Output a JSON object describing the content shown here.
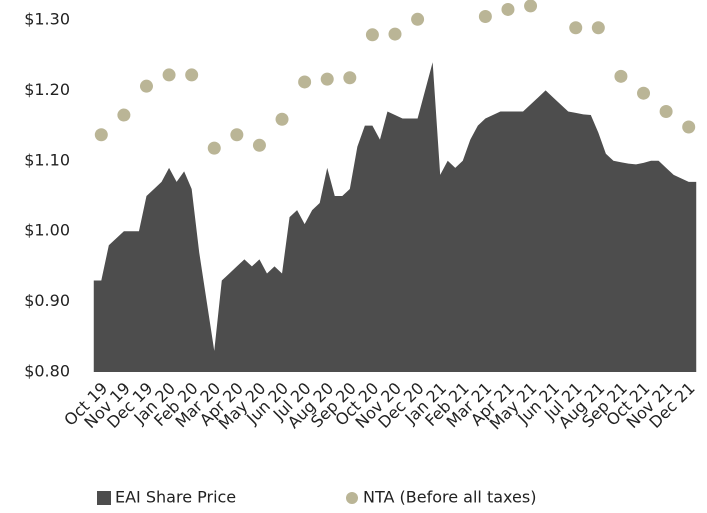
{
  "chart_data": {
    "type": "area_scatter",
    "categories": [
      null,
      "Oct 19",
      null,
      null,
      "Nov 19",
      null,
      null,
      "Dec 19",
      null,
      null,
      "Jan 20",
      null,
      null,
      "Feb 20",
      null,
      null,
      "Mar 20",
      null,
      null,
      "Apr 20",
      null,
      null,
      "May 20",
      null,
      null,
      "Jun 20",
      null,
      null,
      "Jul 20",
      null,
      null,
      "Aug 20",
      null,
      null,
      "Sep 20",
      null,
      null,
      "Oct 20",
      null,
      null,
      "Nov 20",
      null,
      null,
      "Dec 20",
      null,
      null,
      "Jan 21",
      null,
      null,
      "Feb 21",
      null,
      null,
      "Mar 21",
      null,
      null,
      "Apr 21",
      null,
      null,
      "May 21",
      null,
      null,
      "Jun 21",
      null,
      null,
      "Jul 21",
      null,
      null,
      "Aug 21",
      null,
      null,
      "Sep 21",
      null,
      null,
      "Oct 21",
      null,
      null,
      "Nov 21",
      null,
      null,
      "Dec 21",
      null
    ],
    "series": [
      {
        "name": "EAI Share Price",
        "color": "#4d4d4d",
        "kind": "area",
        "values": [
          0.93,
          0.93,
          0.98,
          0.99,
          1.0,
          1.0,
          1.0,
          1.05,
          1.06,
          1.07,
          1.09,
          1.07,
          1.085,
          1.06,
          0.97,
          0.9,
          0.83,
          0.93,
          0.94,
          0.95,
          0.96,
          0.95,
          0.96,
          0.94,
          0.95,
          0.94,
          1.02,
          1.03,
          1.01,
          1.03,
          1.04,
          1.09,
          1.05,
          1.05,
          1.06,
          1.12,
          1.15,
          1.15,
          1.13,
          1.17,
          1.165,
          1.16,
          1.16,
          1.16,
          1.2,
          1.24,
          1.08,
          1.1,
          1.09,
          1.1,
          1.13,
          1.15,
          1.16,
          1.165,
          1.17,
          1.17,
          1.17,
          1.17,
          1.18,
          1.19,
          1.2,
          1.19,
          1.18,
          1.17,
          1.168,
          1.166,
          1.165,
          1.14,
          1.11,
          1.1,
          1.098,
          1.096,
          1.095,
          1.097,
          1.1,
          1.1,
          1.09,
          1.08,
          1.075,
          1.07,
          1.07
        ]
      },
      {
        "name": "NTA (Before all taxes)",
        "color": "#bab596",
        "kind": "dots",
        "values": [
          null,
          1.137,
          null,
          null,
          1.165,
          null,
          null,
          1.206,
          null,
          null,
          1.222,
          null,
          null,
          1.222,
          null,
          null,
          1.118,
          null,
          null,
          1.137,
          null,
          null,
          1.122,
          null,
          null,
          1.159,
          null,
          null,
          1.212,
          null,
          null,
          1.216,
          null,
          null,
          1.218,
          null,
          null,
          1.279,
          null,
          null,
          1.28,
          null,
          null,
          1.301,
          null,
          null,
          null,
          null,
          null,
          null,
          null,
          null,
          1.305,
          null,
          null,
          1.315,
          null,
          null,
          1.32,
          null,
          null,
          null,
          null,
          null,
          1.289,
          null,
          null,
          1.289,
          null,
          null,
          1.22,
          null,
          null,
          1.196,
          null,
          null,
          1.17,
          null,
          null,
          1.148,
          null
        ]
      }
    ],
    "ylim": [
      0.8,
      1.3
    ],
    "yticks": [
      {
        "value": 0.8,
        "label": "$0.80"
      },
      {
        "value": 0.9,
        "label": "$0.90"
      },
      {
        "value": 1.0,
        "label": "$1.00"
      },
      {
        "value": 1.1,
        "label": "$1.10"
      },
      {
        "value": 1.2,
        "label": "$1.20"
      },
      {
        "value": 1.3,
        "label": "$1.30"
      }
    ],
    "grid": false,
    "legend": "bottom"
  }
}
